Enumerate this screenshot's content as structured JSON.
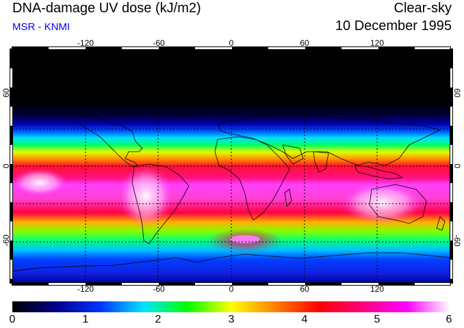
{
  "header": {
    "title": "DNA-damage UV dose (kJ/m2)",
    "source": "MSR - KNMI",
    "condition": "Clear-sky",
    "date": "10 December 1995"
  },
  "axes": {
    "lon_ticks": [
      "-120",
      "-60",
      "0",
      "60",
      "120"
    ],
    "lat_ticks_left": [
      "60",
      "0",
      "-60"
    ],
    "lat_ticks_right": [
      "60",
      "0",
      "-60"
    ]
  },
  "colorbar": {
    "ticks": [
      "0",
      "1",
      "2",
      "3",
      "4",
      "5",
      "6"
    ],
    "min": 0,
    "max": 6,
    "colors": [
      "#000000",
      "#00008b",
      "#0033ff",
      "#00e5ff",
      "#00ff00",
      "#ffff00",
      "#ff8000",
      "#ff0000",
      "#ff0080",
      "#ff00ff",
      "#ffffff"
    ]
  },
  "colors": {
    "title": "#000000",
    "source": "#0000ff",
    "coastline": "#000000",
    "grid": "#000000"
  }
}
